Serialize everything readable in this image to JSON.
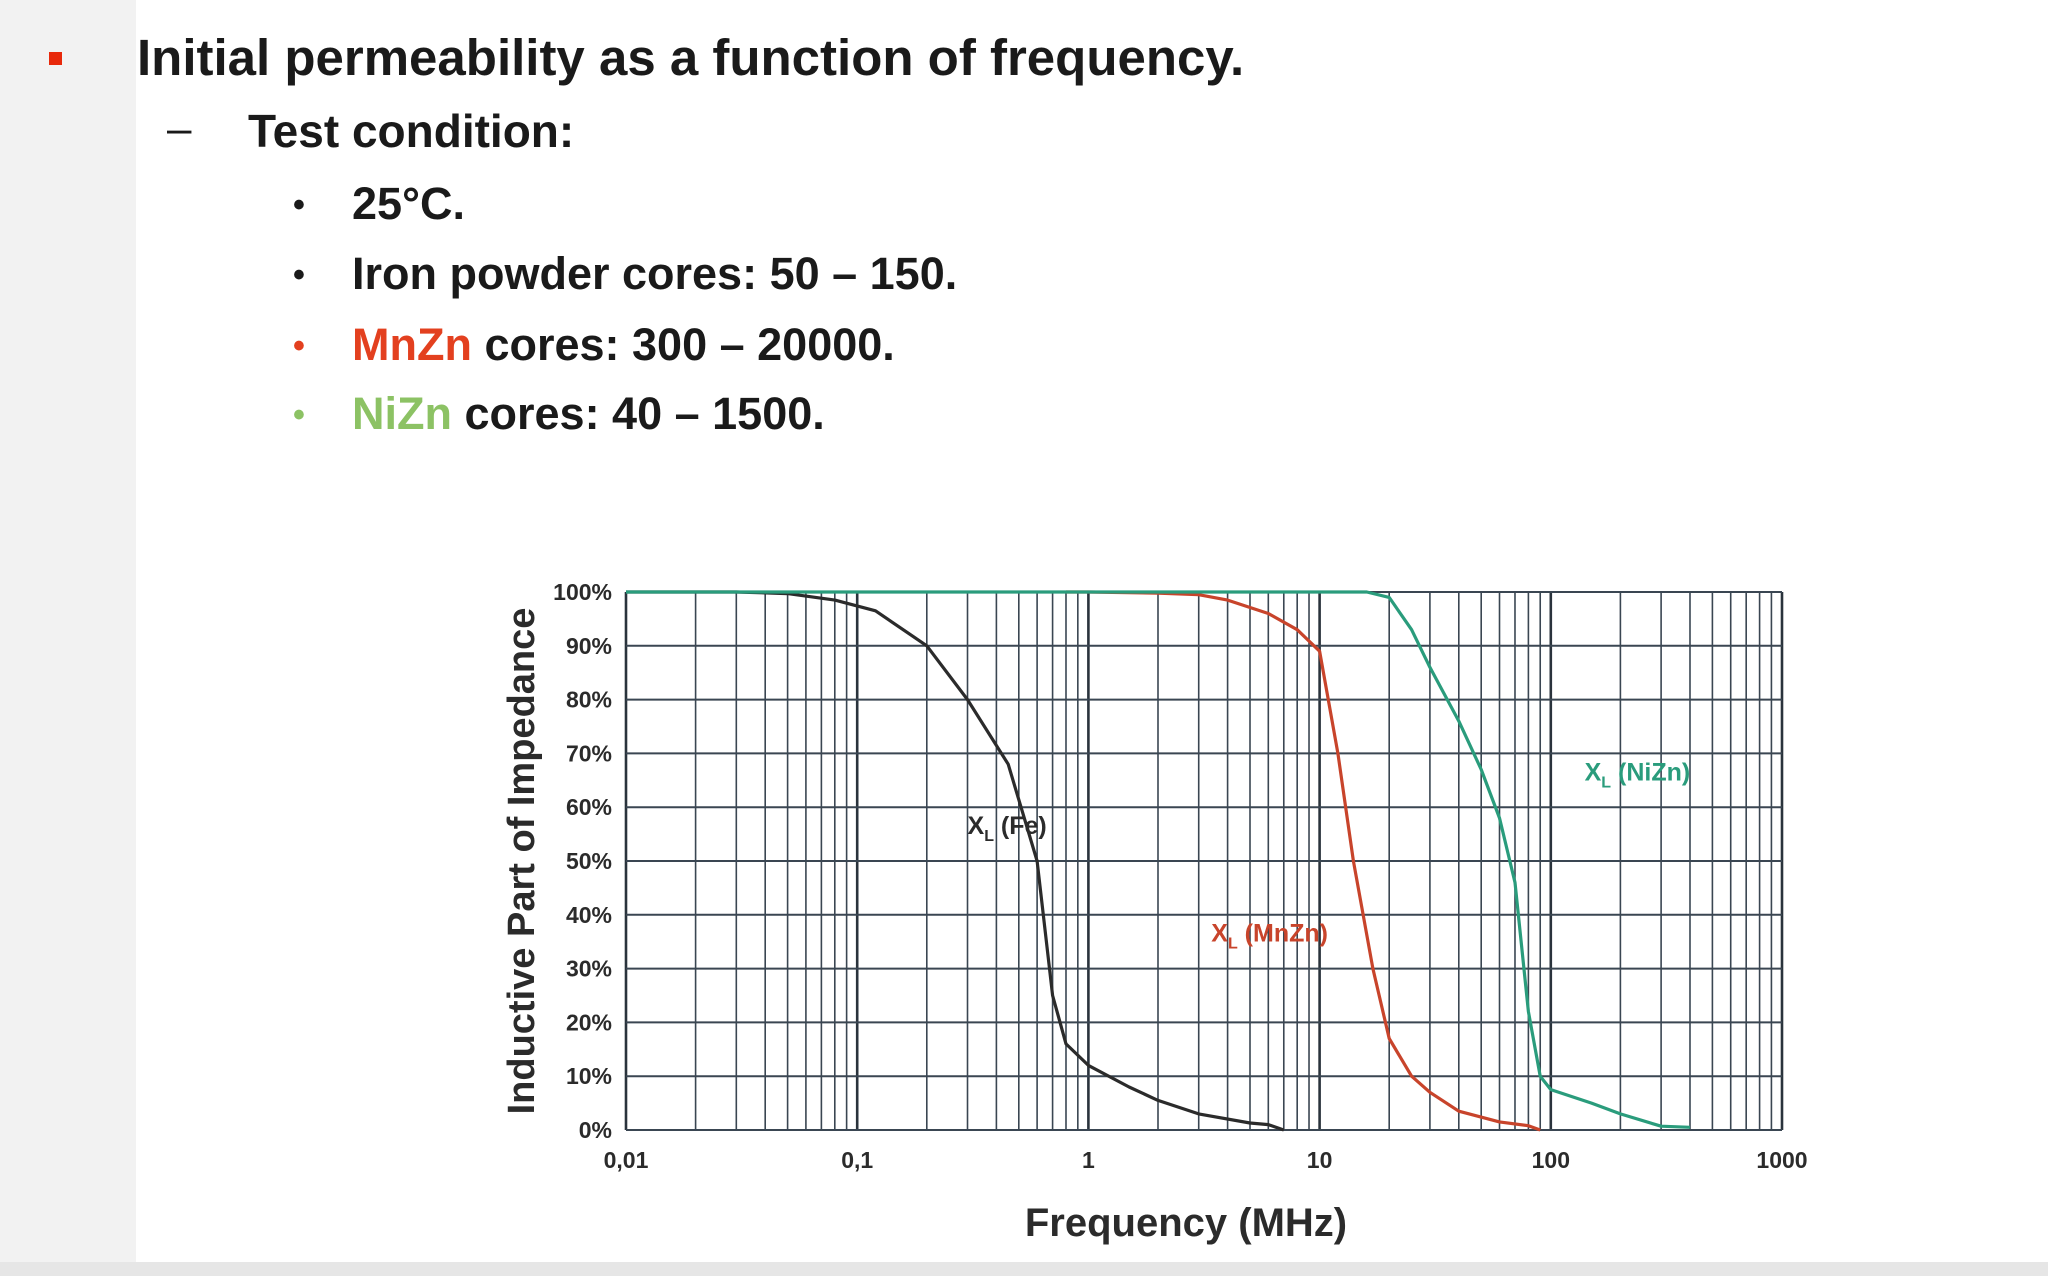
{
  "slide": {
    "heading": "Initial permeability as a function of frequency.",
    "sub_dash": "–",
    "sub_heading": "Test condition:",
    "bullet_glyph": "•",
    "bullets": [
      {
        "prefix": "",
        "text": "25°C.",
        "prefix_color": "",
        "dot_color": "#1a1a1a"
      },
      {
        "prefix": "",
        "text": "Iron powder cores:  50 – 150.",
        "prefix_color": "",
        "dot_color": "#1a1a1a"
      },
      {
        "prefix": "MnZn",
        "text": " cores:  300 – 20000.",
        "prefix_color": "#e3401f",
        "dot_color": "#e3401f"
      },
      {
        "prefix": "NiZn",
        "text": " cores:  40 – 1500.",
        "prefix_color": "#8cc264",
        "dot_color": "#8cc264"
      }
    ]
  },
  "chart_data": {
    "type": "line",
    "xlabel": "Frequency (MHz)",
    "ylabel": "Inductive Part of Impedance",
    "x_scale": "log",
    "xlim": [
      0.01,
      1000
    ],
    "ylim": [
      0,
      100
    ],
    "x_ticks": [
      "0,01",
      "0,1",
      "1",
      "10",
      "100",
      "1000"
    ],
    "y_ticks": [
      "0%",
      "10%",
      "20%",
      "30%",
      "40%",
      "50%",
      "60%",
      "70%",
      "80%",
      "90%",
      "100%"
    ],
    "grid": true,
    "series": [
      {
        "name": "X",
        "subscript": "L",
        "suffix": "(Fe)",
        "color": "#2b2b2b",
        "x": [
          0.01,
          0.03,
          0.05,
          0.08,
          0.12,
          0.2,
          0.3,
          0.45,
          0.6,
          0.7,
          0.8,
          1,
          1.5,
          2,
          3,
          5,
          6,
          7
        ],
        "y": [
          100,
          100,
          99.7,
          98.5,
          96.5,
          90,
          80,
          68,
          50,
          25,
          16,
          12,
          8,
          5.5,
          3,
          1.3,
          1,
          0
        ]
      },
      {
        "name": "X",
        "subscript": "L",
        "suffix": "(MnZn)",
        "color": "#c8442b",
        "x": [
          0.8,
          1,
          2,
          3,
          4,
          6,
          8,
          10,
          12,
          14,
          17,
          20,
          25,
          30,
          40,
          60,
          80,
          90
        ],
        "y": [
          100,
          100,
          99.8,
          99.5,
          98.5,
          96,
          93,
          89,
          70,
          50,
          30,
          17,
          10,
          7,
          3.5,
          1.5,
          0.8,
          0
        ]
      },
      {
        "name": "X",
        "subscript": "L",
        "suffix": "(NiZn)",
        "color": "#2a9c7c",
        "x": [
          0.01,
          1,
          10,
          16,
          20,
          25,
          30,
          40,
          50,
          60,
          70,
          80,
          90,
          100,
          150,
          200,
          300,
          400
        ],
        "y": [
          100,
          100,
          100,
          100,
          99,
          93,
          86,
          76,
          67,
          58,
          46,
          22,
          10,
          7.5,
          5,
          3,
          0.7,
          0.5
        ]
      }
    ]
  }
}
